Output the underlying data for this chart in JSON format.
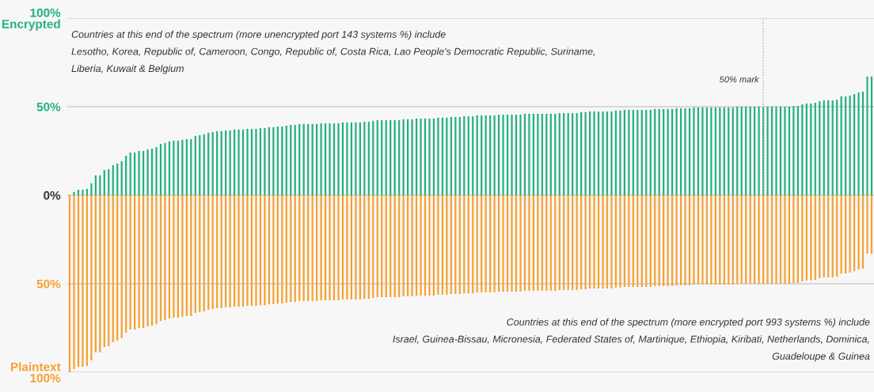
{
  "chart_data": {
    "type": "bar",
    "categories": [
      null,
      null,
      null,
      null,
      null,
      null,
      null,
      null,
      null,
      null,
      null,
      null,
      null,
      null,
      null,
      null,
      null,
      null,
      null,
      null,
      null,
      null,
      null,
      null,
      null,
      null,
      null,
      null,
      null,
      null,
      null,
      null,
      null,
      null,
      null,
      null,
      null,
      null,
      null,
      null,
      null,
      null,
      null,
      null,
      null,
      null,
      null,
      null,
      null,
      null,
      null,
      null,
      null,
      null,
      null,
      null,
      null,
      null,
      null,
      null,
      null,
      null,
      null,
      null,
      null,
      null,
      null,
      null,
      null,
      null,
      null,
      null,
      null,
      null,
      null,
      null,
      null,
      null,
      null,
      null,
      null,
      null,
      null,
      null,
      null,
      null,
      null,
      null,
      null,
      null,
      null,
      null,
      null,
      null,
      null,
      null,
      null,
      null,
      null,
      null,
      null,
      null,
      null,
      null,
      null,
      null,
      null,
      null,
      null,
      null,
      null,
      null,
      null,
      null,
      null,
      null,
      null,
      null,
      null,
      null,
      null,
      null,
      null,
      null,
      null,
      null,
      null,
      null,
      null,
      null,
      null,
      null,
      null,
      null,
      null,
      null,
      null,
      null,
      null,
      null,
      null,
      null,
      null,
      null,
      null,
      null,
      null,
      null,
      null,
      null,
      null,
      null,
      null,
      null,
      null,
      null,
      null,
      null,
      null,
      null,
      null,
      null,
      null,
      null,
      null,
      null,
      null,
      null,
      null,
      null,
      null,
      null,
      null,
      null,
      null,
      null,
      null,
      null,
      null,
      null,
      null,
      null,
      null,
      null,
      null,
      null
    ],
    "series": [
      {
        "color": "#22b07d",
        "values": [
          0,
          1.8,
          3.1,
          3.1,
          3.6,
          6.7,
          11.2,
          11.2,
          14.3,
          14.7,
          17.0,
          17.9,
          19.2,
          22.3,
          24.1,
          24.1,
          25.0,
          25.0,
          25.9,
          26.3,
          27.2,
          29.0,
          29.5,
          30.4,
          30.8,
          30.8,
          31.3,
          31.7,
          31.7,
          33.5,
          33.9,
          34.4,
          35.3,
          35.7,
          36.2,
          36.2,
          36.6,
          36.6,
          37.1,
          37.1,
          37.1,
          37.5,
          37.5,
          37.5,
          37.9,
          37.9,
          38.4,
          38.4,
          38.8,
          38.8,
          39.3,
          39.7,
          39.7,
          40.2,
          40.2,
          40.2,
          40.2,
          40.2,
          40.6,
          40.6,
          40.6,
          40.6,
          40.6,
          41.1,
          41.1,
          41.1,
          41.1,
          41.1,
          41.5,
          41.5,
          42.0,
          42.4,
          42.4,
          42.4,
          42.4,
          42.4,
          42.4,
          42.9,
          42.9,
          42.9,
          43.3,
          43.3,
          43.3,
          43.3,
          43.3,
          43.8,
          43.8,
          43.8,
          44.2,
          44.2,
          44.2,
          44.6,
          44.6,
          44.6,
          45.1,
          45.1,
          45.1,
          45.1,
          45.1,
          45.5,
          45.5,
          45.5,
          45.5,
          45.5,
          45.5,
          46.0,
          46.0,
          46.0,
          46.0,
          46.0,
          46.0,
          46.0,
          46.0,
          46.4,
          46.4,
          46.4,
          46.4,
          46.4,
          46.9,
          46.9,
          47.3,
          47.3,
          47.3,
          47.3,
          47.3,
          47.3,
          47.8,
          47.8,
          48.2,
          48.2,
          48.2,
          48.2,
          48.2,
          48.2,
          48.2,
          48.7,
          48.7,
          48.7,
          48.7,
          48.7,
          49.1,
          49.1,
          49.1,
          49.1,
          49.6,
          49.6,
          49.6,
          49.6,
          49.6,
          49.6,
          49.6,
          49.6,
          49.6,
          49.6,
          50.0,
          50.0,
          50.0,
          50.0,
          50.0,
          50.0,
          50.0,
          50.0,
          50.0,
          50.0,
          50.0,
          50.0,
          50.0,
          50.4,
          50.4,
          51.3,
          51.8,
          51.8,
          52.2,
          53.1,
          53.6,
          53.6,
          53.6,
          54.0,
          55.8,
          55.8,
          56.3,
          57.1,
          58.0,
          58.5,
          67.0,
          67.0
        ]
      },
      {
        "color": "#f7a02f",
        "values": [
          -100,
          -98.2,
          -96.9,
          -96.9,
          -96.4,
          -93.3,
          -88.8,
          -88.8,
          -85.7,
          -85.3,
          -83.0,
          -82.1,
          -80.8,
          -77.7,
          -75.9,
          -75.9,
          -75.0,
          -75.0,
          -74.1,
          -73.7,
          -72.8,
          -71.0,
          -70.5,
          -69.6,
          -69.2,
          -69.2,
          -68.7,
          -68.3,
          -68.3,
          -66.5,
          -66.1,
          -65.6,
          -64.7,
          -64.3,
          -63.8,
          -63.8,
          -63.4,
          -63.4,
          -62.9,
          -62.9,
          -62.9,
          -62.5,
          -62.5,
          -62.5,
          -62.1,
          -62.1,
          -61.6,
          -61.6,
          -61.2,
          -61.2,
          -60.7,
          -60.3,
          -60.3,
          -59.8,
          -59.8,
          -59.8,
          -59.8,
          -59.8,
          -59.4,
          -59.4,
          -59.4,
          -59.4,
          -59.4,
          -58.9,
          -58.9,
          -58.9,
          -58.9,
          -58.9,
          -58.5,
          -58.5,
          -58.0,
          -57.6,
          -57.6,
          -57.6,
          -57.6,
          -57.6,
          -57.6,
          -57.1,
          -57.1,
          -57.1,
          -56.7,
          -56.7,
          -56.7,
          -56.7,
          -56.7,
          -56.2,
          -56.2,
          -56.2,
          -55.8,
          -55.8,
          -55.8,
          -55.4,
          -55.4,
          -55.4,
          -54.9,
          -54.9,
          -54.9,
          -54.9,
          -54.9,
          -54.5,
          -54.5,
          -54.5,
          -54.5,
          -54.5,
          -54.5,
          -54.0,
          -54.0,
          -54.0,
          -54.0,
          -54.0,
          -54.0,
          -54.0,
          -54.0,
          -53.6,
          -53.6,
          -53.6,
          -53.6,
          -53.6,
          -53.1,
          -53.1,
          -52.7,
          -52.7,
          -52.7,
          -52.7,
          -52.7,
          -52.7,
          -52.2,
          -52.2,
          -51.8,
          -51.8,
          -51.8,
          -51.8,
          -51.8,
          -51.8,
          -51.8,
          -51.3,
          -51.3,
          -51.3,
          -51.3,
          -51.3,
          -50.9,
          -50.9,
          -50.9,
          -50.9,
          -50.4,
          -50.4,
          -50.4,
          -50.4,
          -50.4,
          -50.4,
          -50.4,
          -50.4,
          -50.4,
          -50.4,
          -50.0,
          -50.0,
          -50.0,
          -50.0,
          -50.0,
          -50.0,
          -50.0,
          -50.0,
          -50.0,
          -50.0,
          -50.0,
          -50.0,
          -50.0,
          -49.6,
          -49.6,
          -48.7,
          -48.2,
          -48.2,
          -47.8,
          -46.9,
          -46.4,
          -46.4,
          -46.4,
          -46.0,
          -44.2,
          -44.2,
          -43.7,
          -42.9,
          -42.0,
          -41.5,
          -33.0,
          -33.0
        ]
      }
    ],
    "ylim": [
      -100,
      100
    ],
    "yticks": [
      {
        "value": -100,
        "label": "Plaintext\n100%"
      },
      {
        "value": -50,
        "label": "50%"
      },
      {
        "value": 0,
        "label": "0%"
      },
      {
        "value": 50,
        "label": "50%"
      },
      {
        "value": 100,
        "label": "100%\nEncrypted"
      }
    ],
    "grid": "y",
    "stacked": true,
    "annotations": [
      "Countries at this end of the spectrum (more unencrypted port 143 systems %) include\nLesotho, Korea, Republic of, Cameroon, Congo, Republic of, Costa Rica, Lao People's Democratic Republic, Suriname,\nLiberia, Kuwait & Belgium",
      "Countries at this end of the spectrum (more encrypted port 993 systems %) include\nIsrael, Guinea-Bissau, Micronesia, Federated States of, Martinique, Ethiopia, Kiribati, Netherlands, Dominica,\nGuadeloupe & Guinea",
      "50% mark"
    ]
  }
}
